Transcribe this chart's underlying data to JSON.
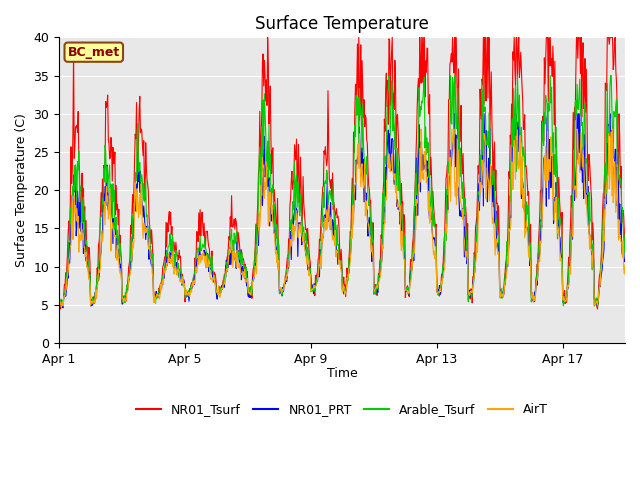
{
  "title": "Surface Temperature",
  "ylabel": "Surface Temperature (C)",
  "xlabel": "Time",
  "ylim": [
    0,
    40
  ],
  "bg_color": "#e8e8e8",
  "fig_color": "#ffffff",
  "annotation_text": "BC_met",
  "annotation_bg": "#ffff99",
  "annotation_border": "#8B4513",
  "annotation_text_color": "#8B0000",
  "x_tick_labels": [
    "Apr 1",
    "Apr 5",
    "Apr 9",
    "Apr 13",
    "Apr 17"
  ],
  "x_tick_positions": [
    0,
    192,
    384,
    576,
    768
  ],
  "series_colors": {
    "NR01_Tsurf": "#ff0000",
    "NR01_PRT": "#0000ff",
    "Arable_Tsurf": "#00cc00",
    "AirT": "#ffa500"
  },
  "n_points": 864,
  "title_fontsize": 12,
  "axis_label_fontsize": 9,
  "tick_fontsize": 9
}
